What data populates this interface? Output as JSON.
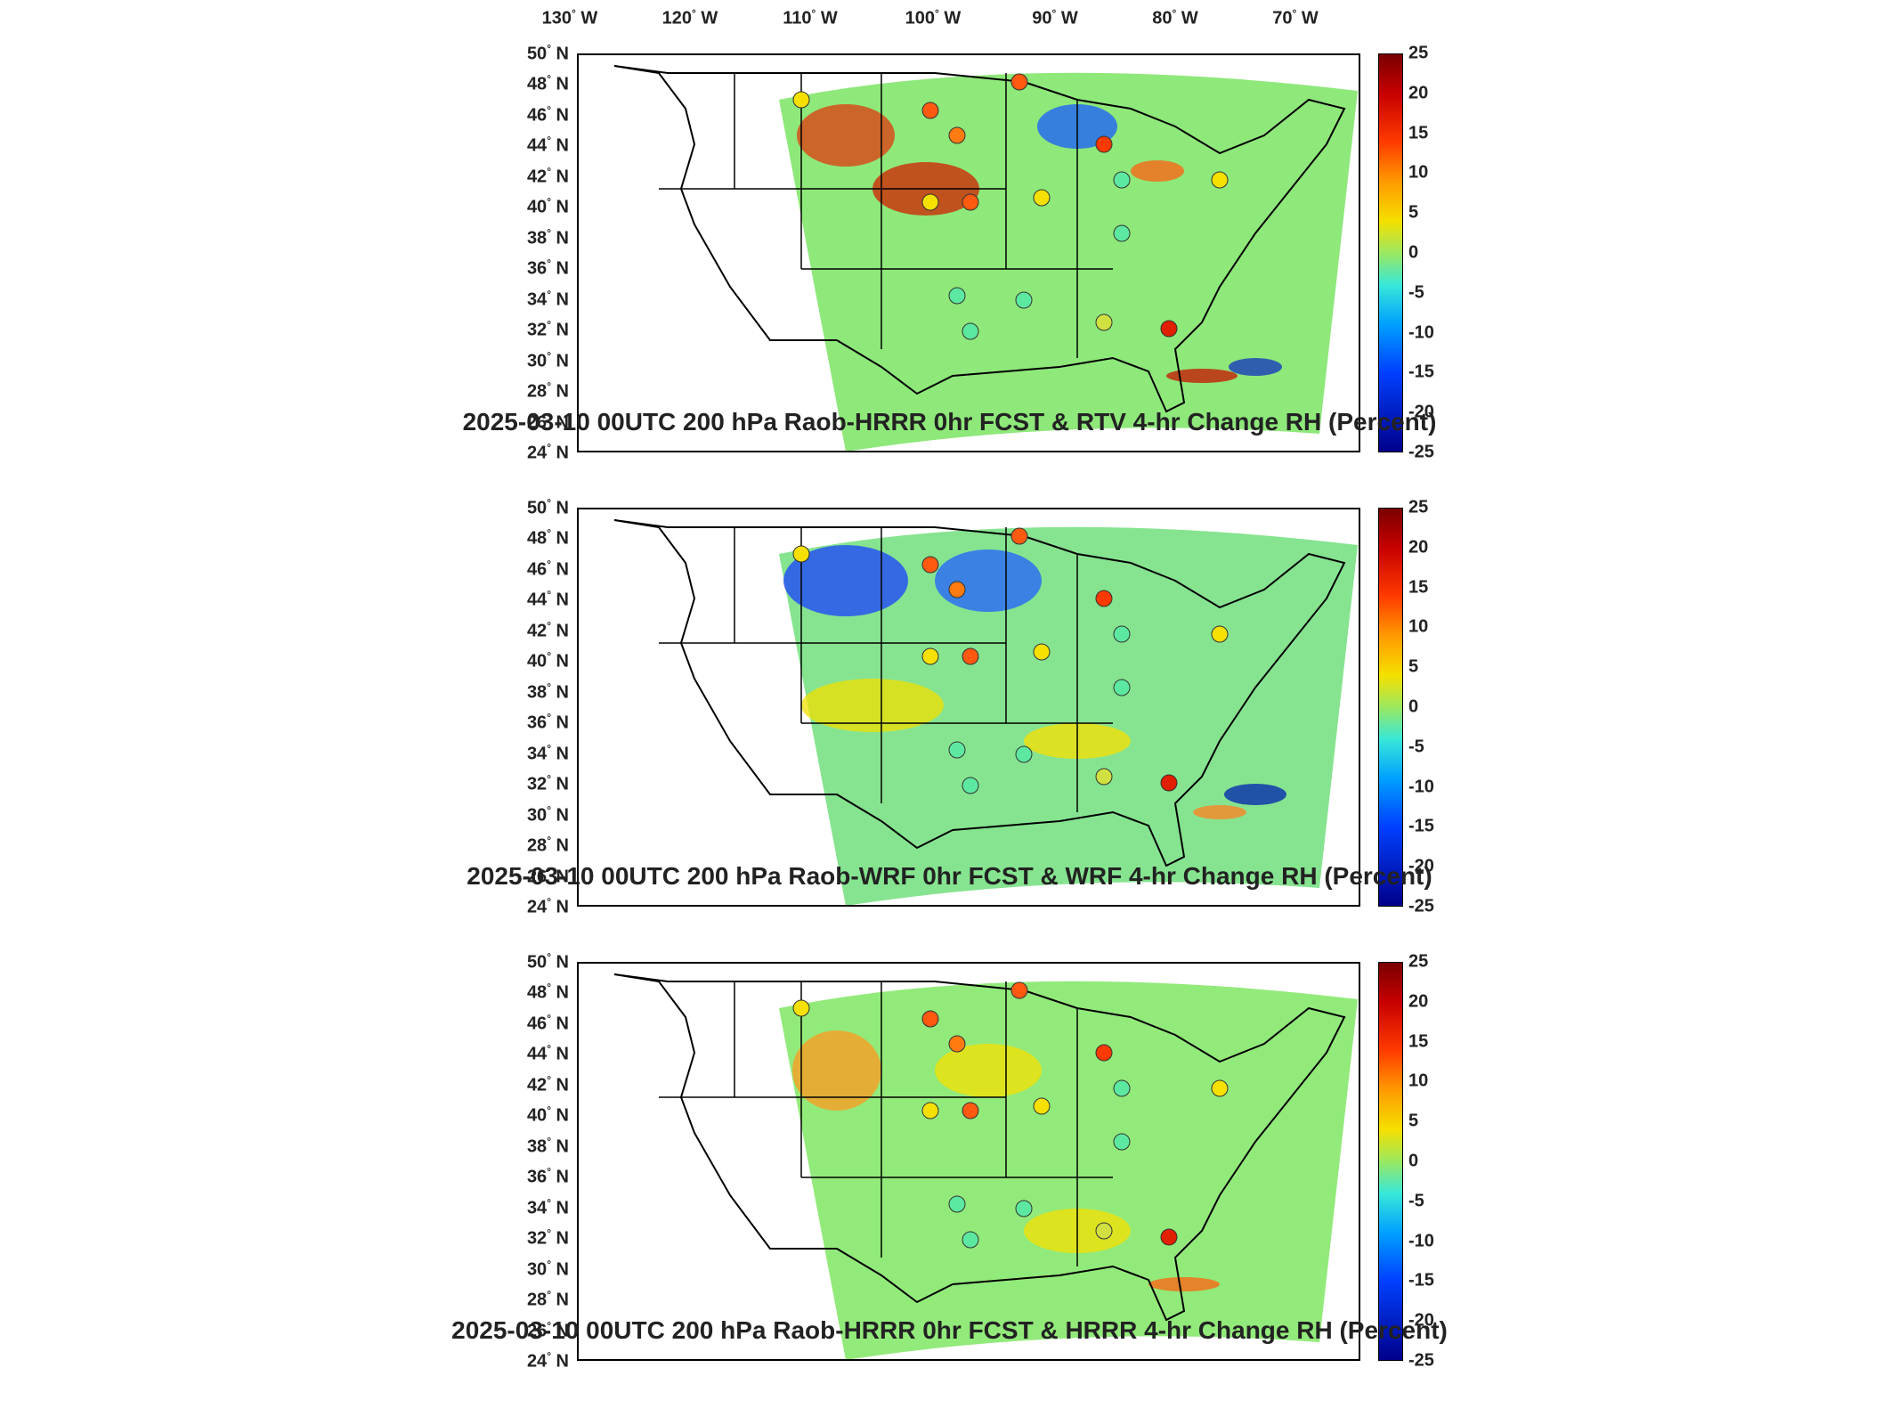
{
  "longitude_labels": [
    {
      "deg": "130",
      "hem": "W"
    },
    {
      "deg": "120",
      "hem": "W"
    },
    {
      "deg": "110",
      "hem": "W"
    },
    {
      "deg": "100",
      "hem": "W"
    },
    {
      "deg": "90",
      "hem": "W"
    },
    {
      "deg": "80",
      "hem": "W"
    },
    {
      "deg": "70",
      "hem": "W"
    }
  ],
  "latitude_labels": [
    {
      "deg": "50",
      "hem": "N"
    },
    {
      "deg": "48",
      "hem": "N"
    },
    {
      "deg": "46",
      "hem": "N"
    },
    {
      "deg": "44",
      "hem": "N"
    },
    {
      "deg": "42",
      "hem": "N"
    },
    {
      "deg": "40",
      "hem": "N"
    },
    {
      "deg": "38",
      "hem": "N"
    },
    {
      "deg": "36",
      "hem": "N"
    },
    {
      "deg": "34",
      "hem": "N"
    },
    {
      "deg": "32",
      "hem": "N"
    },
    {
      "deg": "30",
      "hem": "N"
    },
    {
      "deg": "28",
      "hem": "N"
    },
    {
      "deg": "26",
      "hem": "N"
    },
    {
      "deg": "24",
      "hem": "N"
    }
  ],
  "colorbar": {
    "ticks": [
      "25",
      "20",
      "15",
      "10",
      "5",
      "0",
      "-5",
      "-10",
      "-15",
      "-20",
      "-25"
    ],
    "colors": {
      "max": "#7a0000",
      "high": "#ff3a00",
      "mid": "#9be860",
      "low": "#00a0ff",
      "min": "#00008a"
    }
  },
  "panels": [
    {
      "title": "2025-03-10 00UTC 200 hPa Raob-HRRR 0hr FCST & RTV 4-hr Change RH (Percent)",
      "field_tint": "#8ee87a"
    },
    {
      "title": "2025-03-10 00UTC 200 hPa Raob-WRF 0hr FCST & WRF 4-hr Change RH (Percent)",
      "field_tint": "#86e490"
    },
    {
      "title": "2025-03-10 00UTC 200 hPa Raob-HRRR 0hr FCST & HRRR 4-hr Change RH (Percent)",
      "field_tint": "#92ea7a"
    }
  ]
}
